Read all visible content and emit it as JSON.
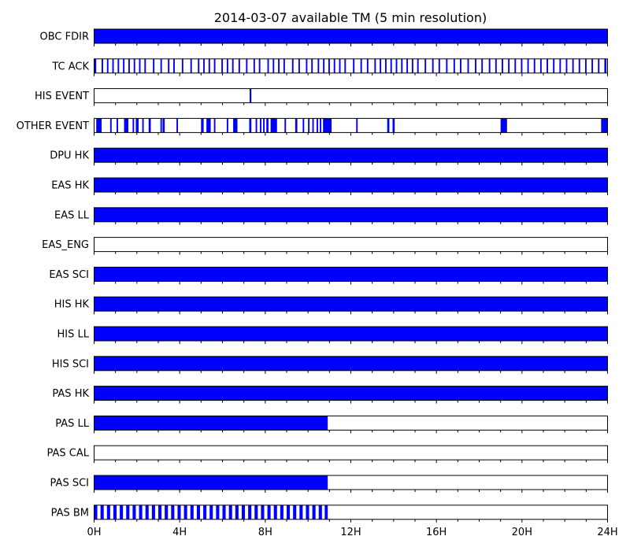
{
  "chart_data": {
    "type": "bar",
    "title": "2014-03-07 available TM (5 min resolution)",
    "xlim": [
      0,
      24
    ],
    "x_ticks": [
      0,
      4,
      8,
      12,
      16,
      20,
      24
    ],
    "x_tick_labels": [
      "0H",
      "4H",
      "8H",
      "12H",
      "16H",
      "20H",
      "24H"
    ],
    "minor_tick_step_hours": 1,
    "bar_color": "#0000ff",
    "series": [
      {
        "name": "OBC FDIR",
        "intervals": [
          [
            0,
            24
          ]
        ]
      },
      {
        "name": "TC ACK",
        "intervals": [
          [
            0.0,
            0.1
          ],
          [
            0.35,
            0.42
          ],
          [
            0.6,
            0.67
          ],
          [
            0.85,
            0.92
          ],
          [
            1.1,
            1.17
          ],
          [
            1.35,
            1.42
          ],
          [
            1.6,
            1.67
          ],
          [
            1.85,
            1.92
          ],
          [
            2.1,
            2.17
          ],
          [
            2.35,
            2.42
          ],
          [
            2.75,
            2.82
          ],
          [
            3.1,
            3.17
          ],
          [
            3.45,
            3.52
          ],
          [
            3.7,
            3.77
          ],
          [
            4.1,
            4.17
          ],
          [
            4.5,
            4.57
          ],
          [
            4.85,
            4.92
          ],
          [
            5.1,
            5.17
          ],
          [
            5.35,
            5.42
          ],
          [
            5.6,
            5.67
          ],
          [
            5.95,
            6.02
          ],
          [
            6.2,
            6.27
          ],
          [
            6.45,
            6.52
          ],
          [
            6.75,
            6.82
          ],
          [
            7.1,
            7.17
          ],
          [
            7.45,
            7.52
          ],
          [
            7.7,
            7.77
          ],
          [
            8.1,
            8.17
          ],
          [
            8.35,
            8.42
          ],
          [
            8.6,
            8.67
          ],
          [
            8.85,
            8.92
          ],
          [
            9.25,
            9.32
          ],
          [
            9.55,
            9.62
          ],
          [
            9.9,
            9.97
          ],
          [
            10.15,
            10.22
          ],
          [
            10.45,
            10.52
          ],
          [
            10.7,
            10.77
          ],
          [
            10.95,
            11.02
          ],
          [
            11.2,
            11.27
          ],
          [
            11.45,
            11.52
          ],
          [
            11.7,
            11.77
          ],
          [
            12.1,
            12.17
          ],
          [
            12.45,
            12.52
          ],
          [
            12.75,
            12.82
          ],
          [
            13.1,
            13.17
          ],
          [
            13.35,
            13.42
          ],
          [
            13.6,
            13.67
          ],
          [
            13.85,
            13.92
          ],
          [
            14.1,
            14.17
          ],
          [
            14.35,
            14.42
          ],
          [
            14.6,
            14.67
          ],
          [
            14.85,
            14.92
          ],
          [
            15.1,
            15.17
          ],
          [
            15.45,
            15.52
          ],
          [
            15.8,
            15.87
          ],
          [
            16.1,
            16.17
          ],
          [
            16.45,
            16.52
          ],
          [
            16.8,
            16.87
          ],
          [
            17.1,
            17.17
          ],
          [
            17.45,
            17.52
          ],
          [
            17.8,
            17.87
          ],
          [
            18.1,
            18.17
          ],
          [
            18.45,
            18.52
          ],
          [
            18.75,
            18.82
          ],
          [
            19.05,
            19.12
          ],
          [
            19.35,
            19.42
          ],
          [
            19.65,
            19.72
          ],
          [
            19.95,
            20.02
          ],
          [
            20.25,
            20.32
          ],
          [
            20.55,
            20.62
          ],
          [
            20.85,
            20.92
          ],
          [
            21.15,
            21.22
          ],
          [
            21.45,
            21.52
          ],
          [
            21.75,
            21.82
          ],
          [
            22.05,
            22.12
          ],
          [
            22.35,
            22.42
          ],
          [
            22.65,
            22.72
          ],
          [
            22.95,
            23.02
          ],
          [
            23.25,
            23.32
          ],
          [
            23.55,
            23.62
          ],
          [
            23.85,
            23.95
          ]
        ]
      },
      {
        "name": "HIS EVENT",
        "intervals": [
          [
            7.27,
            7.35
          ]
        ]
      },
      {
        "name": "OTHER EVENT",
        "intervals": [
          [
            0.1,
            0.35
          ],
          [
            0.75,
            0.82
          ],
          [
            1.05,
            1.12
          ],
          [
            1.4,
            1.6
          ],
          [
            1.8,
            1.87
          ],
          [
            1.95,
            2.08
          ],
          [
            2.25,
            2.32
          ],
          [
            2.55,
            2.65
          ],
          [
            3.1,
            3.17
          ],
          [
            3.2,
            3.3
          ],
          [
            3.85,
            3.92
          ],
          [
            5.0,
            5.12
          ],
          [
            5.25,
            5.45
          ],
          [
            5.6,
            5.67
          ],
          [
            6.2,
            6.27
          ],
          [
            6.5,
            6.7
          ],
          [
            7.25,
            7.35
          ],
          [
            7.55,
            7.62
          ],
          [
            7.75,
            7.82
          ],
          [
            7.9,
            7.97
          ],
          [
            8.05,
            8.15
          ],
          [
            8.25,
            8.55
          ],
          [
            8.9,
            8.97
          ],
          [
            9.4,
            9.5
          ],
          [
            9.75,
            9.82
          ],
          [
            10.0,
            10.07
          ],
          [
            10.2,
            10.27
          ],
          [
            10.4,
            10.47
          ],
          [
            10.55,
            10.62
          ],
          [
            10.7,
            11.1
          ],
          [
            12.25,
            12.32
          ],
          [
            13.7,
            13.8
          ],
          [
            13.95,
            14.05
          ],
          [
            19.0,
            19.3
          ],
          [
            23.7,
            24.0
          ]
        ]
      },
      {
        "name": "DPU HK",
        "intervals": [
          [
            0,
            24
          ]
        ]
      },
      {
        "name": "EAS HK",
        "intervals": [
          [
            0,
            24
          ]
        ]
      },
      {
        "name": "EAS LL",
        "intervals": [
          [
            0,
            24
          ]
        ]
      },
      {
        "name": "EAS_ENG",
        "intervals": []
      },
      {
        "name": "EAS SCI",
        "intervals": [
          [
            0,
            24
          ]
        ]
      },
      {
        "name": "HIS HK",
        "intervals": [
          [
            0,
            24
          ]
        ]
      },
      {
        "name": "HIS LL",
        "intervals": [
          [
            0,
            24
          ]
        ]
      },
      {
        "name": "HIS SCI",
        "intervals": [
          [
            0,
            24
          ]
        ]
      },
      {
        "name": "PAS HK",
        "intervals": [
          [
            0,
            24
          ]
        ]
      },
      {
        "name": "PAS LL",
        "intervals": [
          [
            0,
            10.92
          ]
        ]
      },
      {
        "name": "PAS CAL",
        "intervals": []
      },
      {
        "name": "PAS SCI",
        "intervals": [
          [
            0,
            10.92
          ]
        ]
      },
      {
        "name": "PAS BM",
        "intervals": [
          [
            0.0,
            0.15
          ],
          [
            0.3,
            0.45
          ],
          [
            0.6,
            0.75
          ],
          [
            0.9,
            1.05
          ],
          [
            1.2,
            1.35
          ],
          [
            1.5,
            1.65
          ],
          [
            1.8,
            1.95
          ],
          [
            2.1,
            2.25
          ],
          [
            2.4,
            2.55
          ],
          [
            2.7,
            2.85
          ],
          [
            3.0,
            3.15
          ],
          [
            3.3,
            3.45
          ],
          [
            3.6,
            3.75
          ],
          [
            3.9,
            4.05
          ],
          [
            4.2,
            4.35
          ],
          [
            4.5,
            4.65
          ],
          [
            4.8,
            4.95
          ],
          [
            5.1,
            5.25
          ],
          [
            5.4,
            5.55
          ],
          [
            5.7,
            5.85
          ],
          [
            6.0,
            6.15
          ],
          [
            6.3,
            6.45
          ],
          [
            6.6,
            6.75
          ],
          [
            6.9,
            7.05
          ],
          [
            7.2,
            7.35
          ],
          [
            7.5,
            7.65
          ],
          [
            7.8,
            7.95
          ],
          [
            8.1,
            8.25
          ],
          [
            8.4,
            8.55
          ],
          [
            8.7,
            8.85
          ],
          [
            9.0,
            9.15
          ],
          [
            9.3,
            9.45
          ],
          [
            9.6,
            9.75
          ],
          [
            9.9,
            10.05
          ],
          [
            10.2,
            10.35
          ],
          [
            10.5,
            10.65
          ],
          [
            10.78,
            10.92
          ]
        ]
      }
    ]
  }
}
